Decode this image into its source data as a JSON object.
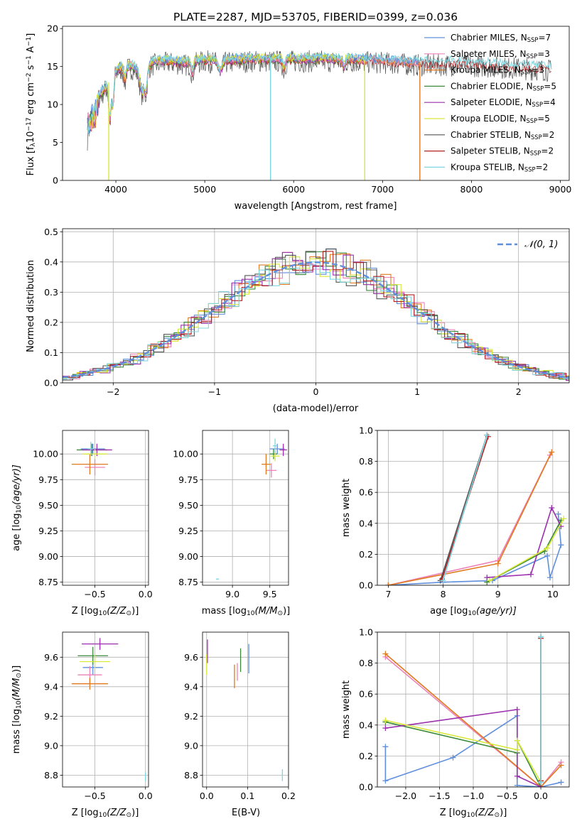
{
  "figure_title": "PLATE=2287, MJD=53705, FIBERID=0399, z=0.036",
  "colors": {
    "Chabrier MILES": "#5f8fdc",
    "Salpeter MILES": "#ee82b8",
    "Kroupa MILES": "#e07a1f",
    "Chabrier ELODIE": "#3a8a3a",
    "Salpeter ELODIE": "#9b2fae",
    "Kroupa ELODIE": "#d8e83a",
    "Chabrier STELIB": "#555555",
    "Salpeter STELIB": "#b22222",
    "Kroupa STELIB": "#7fd6e0",
    "normal": "#5f8fdc"
  },
  "chart_data": [
    {
      "id": "spectrum",
      "type": "line",
      "xlabel": "wavelength [Angstrom, rest frame]",
      "ylabel": "Flux [f",
      "ylabel_parts": [
        "Flux [f",
        "λ",
        "10",
        "−17",
        " erg cm",
        "−2",
        " s",
        "−1",
        " A",
        "−1",
        "]"
      ],
      "xlim": [
        3400,
        9100
      ],
      "ylim": [
        0,
        20.3
      ],
      "xticks": [
        4000,
        5000,
        6000,
        7000,
        8000,
        9000
      ],
      "yticks": [
        0,
        5,
        10,
        15,
        20
      ],
      "grid": false,
      "legend_position": "upper right",
      "legend": [
        {
          "base": "Chabrier MILES, N",
          "sub": "SSP",
          "tail": "=7"
        },
        {
          "base": "Salpeter MILES, N",
          "sub": "SSP",
          "tail": "=3"
        },
        {
          "base": "Kroupa MILES, N",
          "sub": "SSP",
          "tail": "=3"
        },
        {
          "base": "Chabrier ELODIE, N",
          "sub": "SSP",
          "tail": "=5"
        },
        {
          "base": "Salpeter ELODIE, N",
          "sub": "SSP",
          "tail": "=4"
        },
        {
          "base": "Kroupa ELODIE, N",
          "sub": "SSP",
          "tail": "=5"
        },
        {
          "base": "Chabrier STELIB, N",
          "sub": "SSP",
          "tail": "=2"
        },
        {
          "base": "Salpeter STELIB, N",
          "sub": "SSP",
          "tail": "=2"
        },
        {
          "base": "Kroupa STELIB, N",
          "sub": "SSP",
          "tail": "=2"
        }
      ],
      "data_envelope": {
        "x": [
          3680,
          3800,
          3900,
          4000,
          4100,
          4200,
          4300,
          4400,
          4600,
          4800,
          5000,
          5200,
          5500,
          6000,
          6500,
          7000,
          7400,
          7800,
          8200,
          8600,
          8900
        ],
        "y": [
          8.5,
          11.0,
          12.5,
          14.5,
          15.2,
          15.0,
          14.0,
          15.5,
          15.8,
          15.5,
          16.0,
          15.8,
          16.0,
          16.0,
          16.0,
          15.8,
          15.5,
          15.5,
          15.3,
          15.0,
          14.8
        ]
      },
      "drops": [
        {
          "series": "Kroupa ELODIE",
          "x": 3920,
          "y": 0
        },
        {
          "series": "Kroupa STELIB",
          "x": 5740,
          "y": 0
        },
        {
          "series": "Kroupa ELODIE",
          "x": 6800,
          "y": 0
        },
        {
          "series": "Kroupa MILES",
          "x": 7420,
          "y": 0
        }
      ]
    },
    {
      "id": "residuals",
      "type": "step",
      "xlabel": "(data-model)/error",
      "ylabel": "Normed distribution",
      "xlim": [
        -2.5,
        2.5
      ],
      "ylim": [
        0,
        0.51
      ],
      "xticks": [
        -2,
        -1,
        0,
        1,
        2
      ],
      "yticks": [
        0.0,
        0.1,
        0.2,
        0.3,
        0.4,
        0.5
      ],
      "grid": true,
      "legend_position": "upper right",
      "legend": [
        "𝒩(0, 1)"
      ],
      "bin_width": 0.1
    },
    {
      "id": "age_vs_Z",
      "type": "errorbar",
      "xlabel": "Z [log",
      "xlabel_parts": [
        "Z [log",
        "10",
        "(Z/Z",
        "⊙",
        ")]"
      ],
      "ylabel_parts": [
        "age  [log",
        "10",
        "(age/yr)]"
      ],
      "xlim": [
        -0.82,
        0.03
      ],
      "ylim": [
        8.72,
        10.23
      ],
      "xticks": [
        -0.5,
        0.0
      ],
      "yticks": [
        8.75,
        9.0,
        9.25,
        9.5,
        9.75,
        10.0
      ],
      "grid": true,
      "points": [
        {
          "series": "Chabrier MILES",
          "x": -0.52,
          "xerr": 0.12,
          "y": 10.05,
          "yerr": 0.05
        },
        {
          "series": "Salpeter MILES",
          "x": -0.5,
          "xerr": 0.1,
          "y": 9.87,
          "yerr": 0.08
        },
        {
          "series": "Kroupa MILES",
          "x": -0.55,
          "xerr": 0.18,
          "y": 9.9,
          "yerr": 0.1
        },
        {
          "series": "Chabrier ELODIE",
          "x": -0.53,
          "xerr": 0.15,
          "y": 10.04,
          "yerr": 0.06
        },
        {
          "series": "Salpeter ELODIE",
          "x": -0.48,
          "xerr": 0.15,
          "y": 10.04,
          "yerr": 0.06
        },
        {
          "series": "Kroupa ELODIE",
          "x": -0.5,
          "xerr": 0.12,
          "y": 10.0,
          "yerr": 0.05
        },
        {
          "series": "Kroupa STELIB",
          "x": -0.54,
          "xerr": 0.03,
          "y": 10.05,
          "yerr": 0.07
        }
      ]
    },
    {
      "id": "age_vs_mass",
      "type": "errorbar",
      "xlabel_parts": [
        "mass [log",
        "10",
        "(M/M",
        "⊙",
        ")]"
      ],
      "xlim": [
        8.6,
        9.75
      ],
      "ylim": [
        8.72,
        10.23
      ],
      "xticks": [
        9.0,
        9.5
      ],
      "yticks": [
        8.75,
        9.0,
        9.25,
        9.5,
        9.75,
        10.0
      ],
      "grid": true,
      "points": [
        {
          "series": "Chabrier MILES",
          "x": 9.6,
          "xerr": 0.1,
          "y": 10.05,
          "yerr": 0.05
        },
        {
          "series": "Salpeter MILES",
          "x": 9.52,
          "xerr": 0.07,
          "y": 9.84,
          "yerr": 0.07
        },
        {
          "series": "Kroupa MILES",
          "x": 9.45,
          "xerr": 0.06,
          "y": 9.9,
          "yerr": 0.1
        },
        {
          "series": "Chabrier ELODIE",
          "x": 9.55,
          "xerr": 0.05,
          "y": 10.0,
          "yerr": 0.05
        },
        {
          "series": "Salpeter ELODIE",
          "x": 9.68,
          "xerr": 0.05,
          "y": 10.04,
          "yerr": 0.06
        },
        {
          "series": "Kroupa ELODIE",
          "x": 9.57,
          "xerr": 0.06,
          "y": 9.98,
          "yerr": 0.05
        },
        {
          "series": "Kroupa STELIB",
          "x": 8.8,
          "xerr": 0.02,
          "y": 8.78,
          "yerr": 0.005
        },
        {
          "series": "Kroupa STELIB",
          "x": 9.57,
          "xerr": 0.03,
          "y": 10.08,
          "yerr": 0.07
        }
      ]
    },
    {
      "id": "weight_vs_age",
      "type": "line",
      "xlabel_parts": [
        "age  [log",
        "10",
        "(age/yr)]"
      ],
      "ylabel": "mass weight",
      "xlim": [
        6.8,
        10.3
      ],
      "ylim": [
        0,
        1.0
      ],
      "xticks": [
        7,
        8,
        9,
        10
      ],
      "yticks": [
        0.0,
        0.2,
        0.4,
        0.6,
        0.8,
        1.0
      ],
      "grid": true,
      "series": [
        {
          "name": "Chabrier MILES",
          "x": [
            7.0,
            8.0,
            8.9,
            9.9,
            9.95,
            10.15,
            10.1
          ],
          "y": [
            0.0,
            0.02,
            0.03,
            0.19,
            0.05,
            0.26,
            0.46
          ]
        },
        {
          "name": "Salpeter MILES",
          "x": [
            7.0,
            9.0,
            9.95
          ],
          "y": [
            0.0,
            0.16,
            0.84
          ]
        },
        {
          "name": "Kroupa MILES",
          "x": [
            7.0,
            9.0,
            9.98
          ],
          "y": [
            0.0,
            0.14,
            0.86
          ]
        },
        {
          "name": "Chabrier ELODIE",
          "x": [
            8.8,
            9.85,
            10.15
          ],
          "y": [
            0.02,
            0.22,
            0.42
          ]
        },
        {
          "name": "Salpeter ELODIE",
          "x": [
            8.8,
            9.6,
            9.98,
            10.15
          ],
          "y": [
            0.05,
            0.07,
            0.5,
            0.38
          ]
        },
        {
          "name": "Kroupa ELODIE",
          "x": [
            8.85,
            9.9,
            10.2
          ],
          "y": [
            0.03,
            0.24,
            0.43
          ]
        },
        {
          "name": "Chabrier STELIB",
          "x": [
            7.95,
            8.8
          ],
          "y": [
            0.03,
            0.97
          ]
        },
        {
          "name": "Salpeter STELIB",
          "x": [
            7.98,
            8.82
          ],
          "y": [
            0.04,
            0.96
          ]
        },
        {
          "name": "Kroupa STELIB",
          "x": [
            8.0,
            8.8
          ],
          "y": [
            0.03,
            0.97
          ]
        }
      ]
    },
    {
      "id": "mass_vs_Z",
      "type": "errorbar",
      "xlabel_parts": [
        "Z [log",
        "10",
        "(Z/Z",
        "⊙",
        ")]"
      ],
      "ylabel_parts": [
        "mass [log",
        "10",
        "(M/M",
        "⊙",
        ")]"
      ],
      "xlim": [
        -0.82,
        0.03
      ],
      "ylim": [
        8.72,
        9.77
      ],
      "xticks": [
        -0.5,
        0.0
      ],
      "yticks": [
        8.8,
        9.0,
        9.2,
        9.4,
        9.6
      ],
      "grid": true,
      "points": [
        {
          "series": "Chabrier MILES",
          "x": -0.52,
          "xerr": 0.1,
          "y": 9.53,
          "yerr": 0.05
        },
        {
          "series": "Salpeter MILES",
          "x": -0.55,
          "xerr": 0.12,
          "y": 9.48,
          "yerr": 0.06
        },
        {
          "series": "Kroupa MILES",
          "x": -0.55,
          "xerr": 0.18,
          "y": 9.42,
          "yerr": 0.04
        },
        {
          "series": "Chabrier ELODIE",
          "x": -0.52,
          "xerr": 0.15,
          "y": 9.61,
          "yerr": 0.06
        },
        {
          "series": "Salpeter ELODIE",
          "x": -0.45,
          "xerr": 0.18,
          "y": 9.69,
          "yerr": 0.04
        },
        {
          "series": "Kroupa ELODIE",
          "x": -0.5,
          "xerr": 0.15,
          "y": 9.57,
          "yerr": 0.05
        },
        {
          "series": "Kroupa STELIB",
          "x": 0.0,
          "xerr": 0.005,
          "y": 8.79,
          "yerr": 0.03
        }
      ]
    },
    {
      "id": "mass_vs_ebv",
      "type": "errorbar",
      "xlabel": "E(B-V)",
      "xlim": [
        -0.01,
        0.2
      ],
      "ylim": [
        8.72,
        9.77
      ],
      "xticks": [
        0.0,
        0.1,
        0.2
      ],
      "yticks": [
        8.8,
        9.0,
        9.2,
        9.4,
        9.6
      ],
      "grid": true,
      "points": [
        {
          "series": "Salpeter ELODIE",
          "x": 0.002,
          "y": 9.64,
          "yerr": 0.08
        },
        {
          "series": "Kroupa ELODIE",
          "x": 0.0,
          "y": 9.55,
          "yerr": 0.07
        },
        {
          "series": "Kroupa MILES",
          "x": 0.068,
          "y": 9.47,
          "yerr": 0.08
        },
        {
          "series": "Salpeter MILES",
          "x": 0.075,
          "y": 9.5,
          "yerr": 0.06
        },
        {
          "series": "Chabrier ELODIE",
          "x": 0.083,
          "y": 9.58,
          "yerr": 0.08
        },
        {
          "series": "Chabrier MILES",
          "x": 0.103,
          "y": 9.59,
          "yerr": 0.1
        },
        {
          "series": "Kroupa STELIB",
          "x": 0.185,
          "y": 8.8,
          "yerr": 0.04
        }
      ]
    },
    {
      "id": "weight_vs_Z",
      "type": "line",
      "xlabel_parts": [
        "Z [log",
        "10",
        "(Z/Z",
        "⊙",
        ")]"
      ],
      "ylabel": "mass weight",
      "xlim": [
        -2.42,
        0.42
      ],
      "ylim": [
        0,
        1.0
      ],
      "xticks": [
        -2.0,
        -1.5,
        -1.0,
        -0.5,
        0.0
      ],
      "yticks": [
        0.0,
        0.2,
        0.4,
        0.6,
        0.8,
        1.0
      ],
      "grid": true,
      "series": [
        {
          "name": "Chabrier MILES",
          "x": [
            -2.3,
            -2.3,
            -1.3,
            -0.35,
            -0.35,
            0.0,
            0.3
          ],
          "y": [
            0.26,
            0.04,
            0.19,
            0.46,
            0.01,
            0.0,
            0.03
          ]
        },
        {
          "name": "Salpeter MILES",
          "x": [
            -2.3,
            0.0,
            0.3
          ],
          "y": [
            0.84,
            0.0,
            0.16
          ]
        },
        {
          "name": "Kroupa MILES",
          "x": [
            -2.3,
            0.0,
            0.3
          ],
          "y": [
            0.86,
            0.0,
            0.14
          ]
        },
        {
          "name": "Chabrier ELODIE",
          "x": [
            -2.3,
            -0.35,
            -0.35,
            0.0
          ],
          "y": [
            0.42,
            0.22,
            0.3,
            0.0
          ]
        },
        {
          "name": "Salpeter ELODIE",
          "x": [
            -2.3,
            -0.35,
            -0.35,
            0.0
          ],
          "y": [
            0.38,
            0.5,
            0.07,
            0.0
          ]
        },
        {
          "name": "Kroupa ELODIE",
          "x": [
            -2.3,
            -0.35,
            -0.35,
            0.0
          ],
          "y": [
            0.43,
            0.24,
            0.3,
            0.03
          ]
        },
        {
          "name": "Chabrier STELIB",
          "x": [
            0.0,
            0.0
          ],
          "y": [
            0.03,
            0.97
          ]
        },
        {
          "name": "Salpeter STELIB",
          "x": [
            0.0,
            0.0
          ],
          "y": [
            0.04,
            0.96
          ]
        },
        {
          "name": "Kroupa STELIB",
          "x": [
            0.0,
            0.0
          ],
          "y": [
            0.03,
            0.97
          ]
        }
      ]
    }
  ]
}
